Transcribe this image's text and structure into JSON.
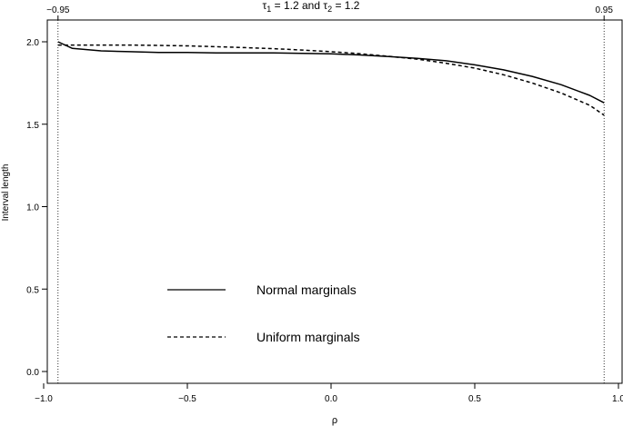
{
  "chart_data": {
    "type": "line",
    "title_parts": {
      "tau1_symbol": "τ",
      "tau1_sub": "1",
      "tau1_rest": " = 1.2 and ",
      "tau2_symbol": "τ",
      "tau2_sub": "2",
      "tau2_rest": " = 1.2"
    },
    "xlabel": "ρ",
    "ylabel": "Interval length",
    "xlim": [
      -1.0,
      1.0
    ],
    "ylim": [
      0.0,
      2.0
    ],
    "x_ticks": [
      {
        "value": -1.0,
        "label": "−1.0"
      },
      {
        "value": -0.5,
        "label": "−0.5"
      },
      {
        "value": 0.0,
        "label": "0.0"
      },
      {
        "value": 0.5,
        "label": "0.5"
      },
      {
        "value": 1.0,
        "label": "1.0"
      }
    ],
    "y_ticks": [
      {
        "value": 0.0,
        "label": "0.0"
      },
      {
        "value": 0.5,
        "label": "0.5"
      },
      {
        "value": 1.0,
        "label": "1.0"
      },
      {
        "value": 1.5,
        "label": "1.5"
      },
      {
        "value": 2.0,
        "label": "2.0"
      }
    ],
    "top_ticks": [
      {
        "value": -0.95,
        "label": "−0.95"
      },
      {
        "value": 0.95,
        "label": "0.95"
      }
    ],
    "vlines": [
      -0.95,
      0.95
    ],
    "series": [
      {
        "name": "Normal marginals",
        "style": "solid",
        "x": [
          -0.95,
          -0.9,
          -0.8,
          -0.7,
          -0.6,
          -0.5,
          -0.4,
          -0.3,
          -0.2,
          -0.1,
          0.0,
          0.1,
          0.2,
          0.3,
          0.4,
          0.5,
          0.6,
          0.7,
          0.8,
          0.9,
          0.95
        ],
        "y": [
          2.0,
          1.96,
          1.945,
          1.94,
          1.935,
          1.935,
          1.933,
          1.933,
          1.932,
          1.93,
          1.927,
          1.92,
          1.91,
          1.9,
          1.885,
          1.86,
          1.83,
          1.79,
          1.74,
          1.675,
          1.63
        ]
      },
      {
        "name": "Uniform marginals",
        "style": "dashed",
        "x": [
          -0.95,
          -0.9,
          -0.8,
          -0.7,
          -0.6,
          -0.5,
          -0.4,
          -0.3,
          -0.2,
          -0.1,
          0.0,
          0.1,
          0.2,
          0.3,
          0.4,
          0.5,
          0.6,
          0.7,
          0.8,
          0.9,
          0.95
        ],
        "y": [
          1.98,
          1.98,
          1.98,
          1.98,
          1.978,
          1.975,
          1.97,
          1.965,
          1.958,
          1.95,
          1.94,
          1.928,
          1.912,
          1.895,
          1.87,
          1.84,
          1.8,
          1.75,
          1.69,
          1.615,
          1.555
        ]
      }
    ]
  }
}
